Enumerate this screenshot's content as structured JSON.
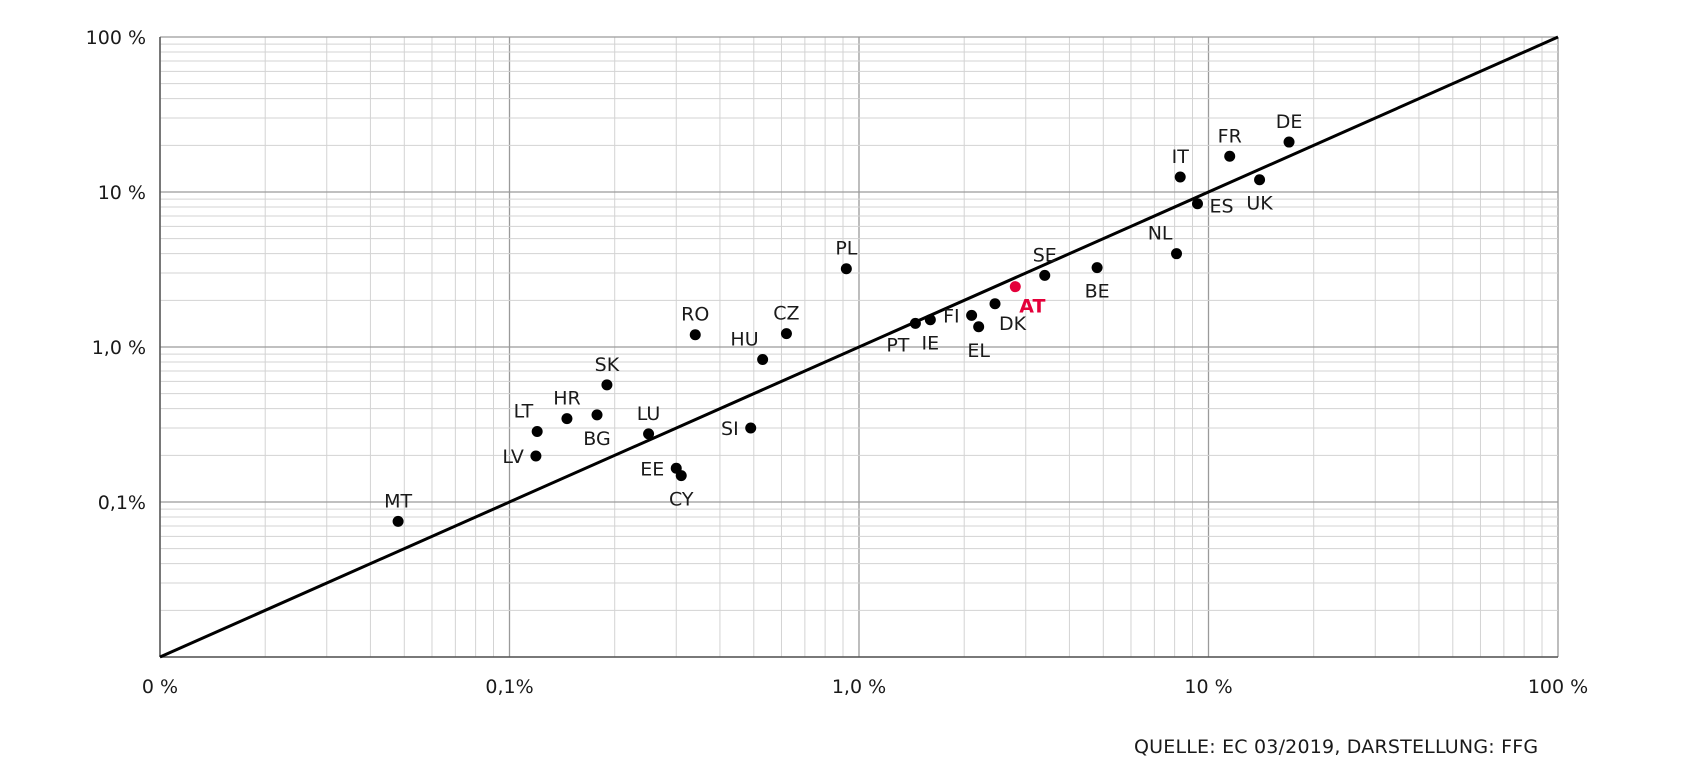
{
  "chart_data": {
    "type": "scatter",
    "x_scale": "log",
    "y_scale": "log",
    "xlim": [
      0.01,
      100
    ],
    "ylim": [
      0.01,
      100
    ],
    "grid": true,
    "reference_line": "y = x",
    "highlight_color": "#e4003a",
    "point_color": "#000000",
    "x_tick_labels": [
      "0 %",
      "0,1%",
      "1,0 %",
      "10 %",
      "100 %"
    ],
    "y_tick_labels": [
      "100 %",
      "10 %",
      "1,0 %",
      "0,1%"
    ],
    "points": [
      {
        "label": "DE",
        "x": 17,
        "y": 21,
        "label_pos": "above"
      },
      {
        "label": "FR",
        "x": 11.5,
        "y": 17,
        "label_pos": "above"
      },
      {
        "label": "IT",
        "x": 8.3,
        "y": 12.5,
        "label_pos": "above"
      },
      {
        "label": "UK",
        "x": 14,
        "y": 12,
        "label_pos": "below"
      },
      {
        "label": "ES",
        "x": 9.3,
        "y": 8.4,
        "label_pos": "right"
      },
      {
        "label": "NL",
        "x": 8.1,
        "y": 4,
        "label_pos": "above-left"
      },
      {
        "label": "BE",
        "x": 4.8,
        "y": 3.25,
        "label_pos": "below"
      },
      {
        "label": "SE",
        "x": 3.4,
        "y": 2.9,
        "label_pos": "above"
      },
      {
        "label": "AT",
        "x": 2.8,
        "y": 2.45,
        "label_pos": "below-right",
        "highlight": true
      },
      {
        "label": "DK",
        "x": 2.45,
        "y": 1.9,
        "label_pos": "below-right"
      },
      {
        "label": "EL",
        "x": 2.2,
        "y": 1.35,
        "label_pos": "below"
      },
      {
        "label": "FI",
        "x": 2.1,
        "y": 1.6,
        "label_pos": "left"
      },
      {
        "label": "IE",
        "x": 1.6,
        "y": 1.5,
        "label_pos": "below"
      },
      {
        "label": "PT",
        "x": 1.45,
        "y": 1.42,
        "label_pos": "below-left"
      },
      {
        "label": "PL",
        "x": 0.92,
        "y": 3.2,
        "label_pos": "above"
      },
      {
        "label": "CZ",
        "x": 0.62,
        "y": 1.22,
        "label_pos": "above"
      },
      {
        "label": "HU",
        "x": 0.53,
        "y": 0.83,
        "label_pos": "above-left"
      },
      {
        "label": "RO",
        "x": 0.34,
        "y": 1.2,
        "label_pos": "above"
      },
      {
        "label": "SI",
        "x": 0.49,
        "y": 0.3,
        "label_pos": "left"
      },
      {
        "label": "EE",
        "x": 0.3,
        "y": 0.165,
        "label_pos": "left"
      },
      {
        "label": "CY",
        "x": 0.31,
        "y": 0.148,
        "label_pos": "below"
      },
      {
        "label": "LU",
        "x": 0.25,
        "y": 0.275,
        "label_pos": "above"
      },
      {
        "label": "SK",
        "x": 0.19,
        "y": 0.57,
        "label_pos": "above"
      },
      {
        "label": "BG",
        "x": 0.178,
        "y": 0.365,
        "label_pos": "below"
      },
      {
        "label": "HR",
        "x": 0.146,
        "y": 0.345,
        "label_pos": "above"
      },
      {
        "label": "LT",
        "x": 0.12,
        "y": 0.285,
        "label_pos": "above-left"
      },
      {
        "label": "LV",
        "x": 0.119,
        "y": 0.198,
        "label_pos": "left"
      },
      {
        "label": "MT",
        "x": 0.048,
        "y": 0.075,
        "label_pos": "above"
      }
    ]
  },
  "source_note": "QUELLE: EC 03/2019, DARSTELLUNG: FFG"
}
